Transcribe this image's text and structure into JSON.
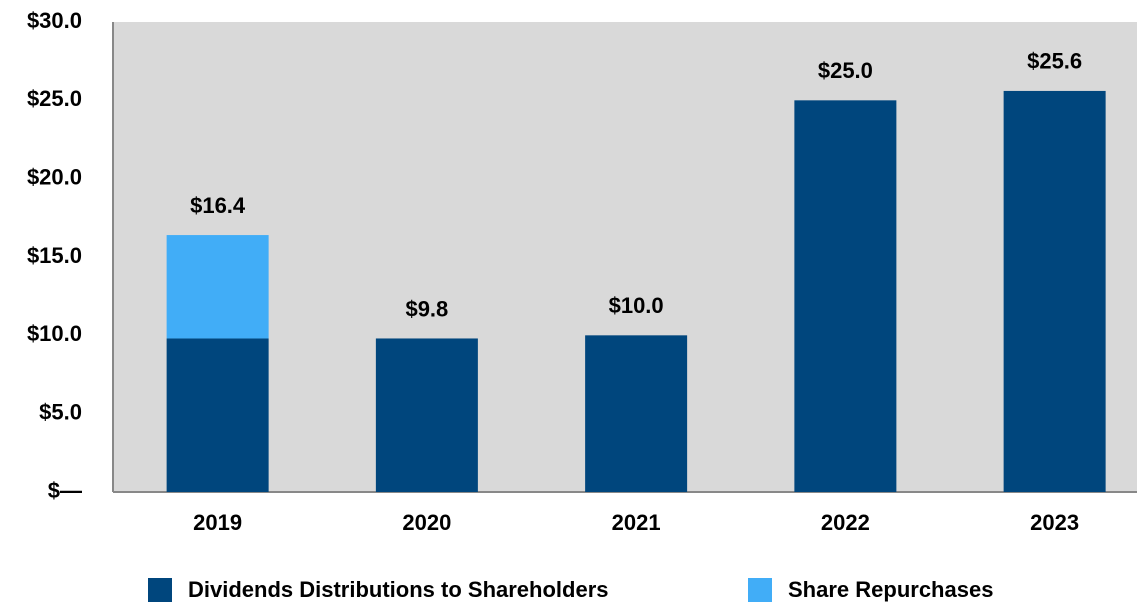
{
  "chart_data": {
    "type": "bar",
    "stacked": true,
    "categories": [
      "2019",
      "2020",
      "2021",
      "2022",
      "2023"
    ],
    "series": [
      {
        "name": "Dividends Distributions to Shareholders",
        "color": "#00467d",
        "values": [
          9.8,
          9.8,
          10.0,
          25.0,
          25.6
        ]
      },
      {
        "name": "Share Repurchases",
        "color": "#41adf7",
        "values": [
          6.6,
          0,
          0,
          0,
          0
        ]
      }
    ],
    "total_labels": [
      "$16.4",
      "$9.8",
      "$10.0",
      "$25.0",
      "$25.6"
    ],
    "ylim": [
      0,
      30
    ],
    "yticks": [
      {
        "value": 0,
        "label": "$—"
      },
      {
        "value": 5,
        "label": "$5.0"
      },
      {
        "value": 10,
        "label": "$10.0"
      },
      {
        "value": 15,
        "label": "$15.0"
      },
      {
        "value": 20,
        "label": "$20.0"
      },
      {
        "value": 25,
        "label": "$25.0"
      },
      {
        "value": 30,
        "label": "$30.0"
      }
    ],
    "grid": false,
    "legend": "bottom",
    "background": "#d9d9d9"
  }
}
